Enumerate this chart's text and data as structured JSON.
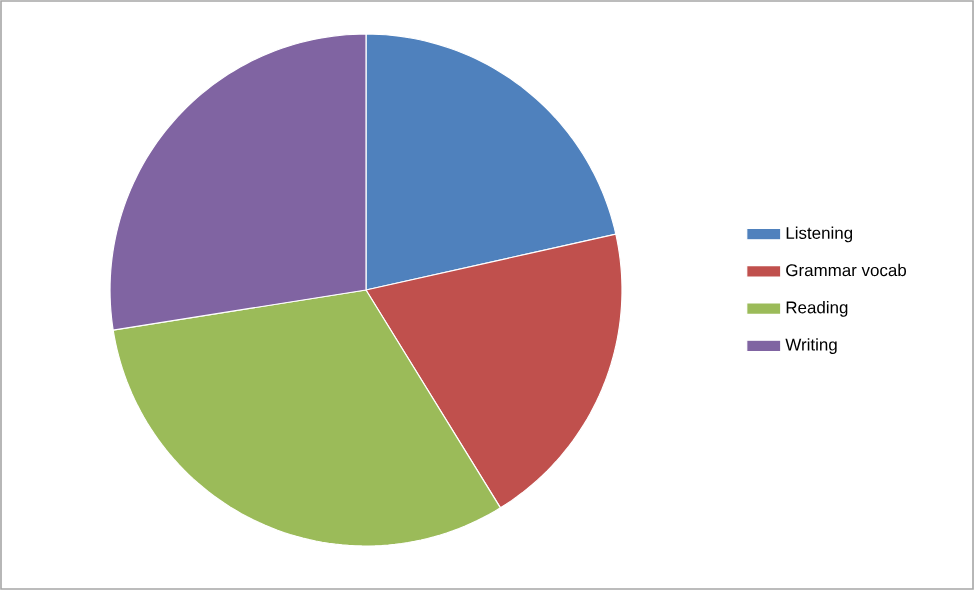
{
  "chart_data": {
    "type": "pie",
    "categories": [
      "Listening",
      "Grammar vocab",
      "Reading",
      "Writing"
    ],
    "values": [
      21.5,
      19.7,
      31.3,
      27.5
    ],
    "colors": [
      "#4f81bd",
      "#c0504d",
      "#9bbb59",
      "#8064a2"
    ],
    "legend": "right"
  }
}
